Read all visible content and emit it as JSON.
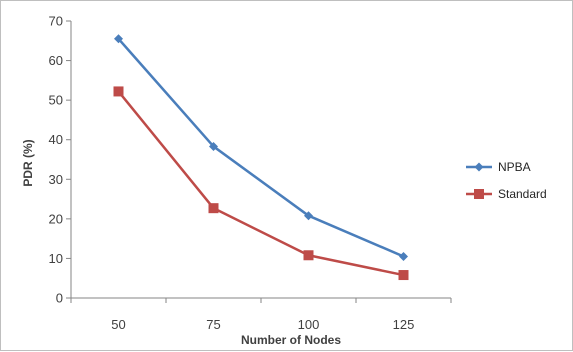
{
  "chart_data": {
    "type": "line",
    "title": "",
    "xlabel": "Number of Nodes",
    "ylabel": "PDR   (%)",
    "categories": [
      "50",
      "75",
      "100",
      "125"
    ],
    "ylim": [
      0,
      70
    ],
    "yticks": [
      0,
      10,
      20,
      30,
      40,
      50,
      60,
      70
    ],
    "grid": false,
    "legend_position": "right",
    "series": [
      {
        "name": "NPBA",
        "values": [
          65.5,
          38.3,
          20.8,
          10.5
        ],
        "color": "#4a7ebb",
        "marker": "diamond"
      },
      {
        "name": "Standard",
        "values": [
          52.2,
          22.7,
          10.8,
          5.8
        ],
        "color": "#be4b48",
        "marker": "square"
      }
    ]
  }
}
